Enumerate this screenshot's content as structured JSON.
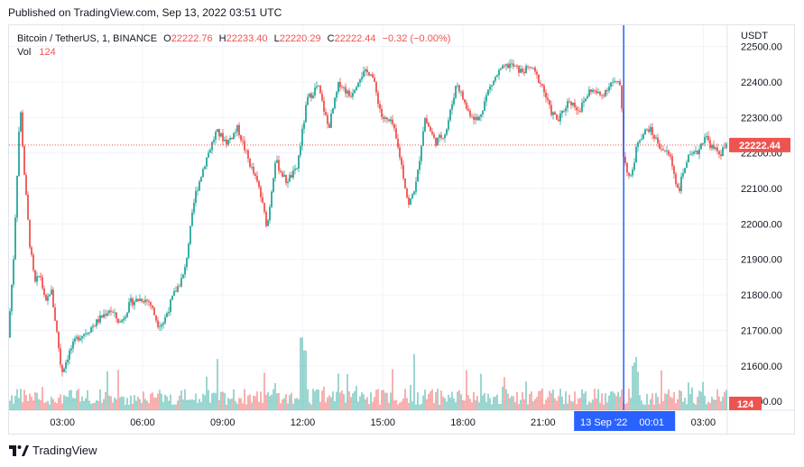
{
  "header": {
    "published": "Published on TradingView.com, Sep 13, 2022 03:51 UTC"
  },
  "legend": {
    "symbol": "Bitcoin / TetherUS, 1, BINANCE",
    "o_label": "O",
    "o_value": "22222.76",
    "h_label": "H",
    "h_value": "22233.40",
    "l_label": "L",
    "l_value": "22220.29",
    "c_label": "C",
    "c_value": "22222.44",
    "change": "−0.32 (−0.00%)",
    "vol_label": "Vol",
    "vol_value": "124"
  },
  "brand": {
    "name": "TradingView"
  },
  "colors": {
    "up": "#26a69a",
    "down": "#ef5350",
    "crosshair": "#2962ff",
    "grid": "#f0f3fa",
    "axis_text": "#131722"
  },
  "chart_data": {
    "type": "candlestick",
    "currency": "USDT",
    "x_ticks": [
      "03:00",
      "06:00",
      "09:00",
      "12:00",
      "15:00",
      "18:00",
      "21:00",
      "00:01",
      "03:00"
    ],
    "x_tick_hours": [
      3,
      6,
      9,
      12,
      15,
      18,
      21,
      24,
      27
    ],
    "x_range_hours": [
      1.0,
      27.9
    ],
    "y_ticks": [
      "22500.00",
      "22400.00",
      "22300.00",
      "22200.00",
      "22100.00",
      "22000.00",
      "21900.00",
      "21800.00",
      "21700.00",
      "21600.00",
      "21500.00"
    ],
    "ylim": [
      21475,
      22560
    ],
    "last_price": 22222.44,
    "last_price_label": "22222.44",
    "last_volume_label": "124",
    "crosshair_hour": 24.02,
    "crosshair_label_date": "13 Sep '22",
    "crosshair_label_time": "00:01",
    "price_path": [
      [
        1.0,
        21680
      ],
      [
        1.2,
        21900
      ],
      [
        1.45,
        22340
      ],
      [
        1.6,
        22150
      ],
      [
        1.8,
        21950
      ],
      [
        2.0,
        21830
      ],
      [
        2.2,
        21860
      ],
      [
        2.4,
        21770
      ],
      [
        2.6,
        21820
      ],
      [
        2.85,
        21680
      ],
      [
        3.0,
        21580
      ],
      [
        3.3,
        21640
      ],
      [
        3.6,
        21680
      ],
      [
        4.0,
        21700
      ],
      [
        4.4,
        21730
      ],
      [
        4.8,
        21760
      ],
      [
        5.2,
        21720
      ],
      [
        5.6,
        21780
      ],
      [
        6.0,
        21790
      ],
      [
        6.3,
        21780
      ],
      [
        6.6,
        21720
      ],
      [
        6.8,
        21720
      ],
      [
        7.2,
        21800
      ],
      [
        7.6,
        21860
      ],
      [
        8.0,
        22080
      ],
      [
        8.4,
        22180
      ],
      [
        8.8,
        22260
      ],
      [
        9.2,
        22230
      ],
      [
        9.6,
        22270
      ],
      [
        10.0,
        22180
      ],
      [
        10.4,
        22100
      ],
      [
        10.7,
        21990
      ],
      [
        11.0,
        22180
      ],
      [
        11.4,
        22120
      ],
      [
        11.8,
        22150
      ],
      [
        12.2,
        22350
      ],
      [
        12.6,
        22390
      ],
      [
        13.0,
        22270
      ],
      [
        13.4,
        22400
      ],
      [
        13.8,
        22360
      ],
      [
        14.2,
        22420
      ],
      [
        14.6,
        22430
      ],
      [
        15.0,
        22300
      ],
      [
        15.4,
        22280
      ],
      [
        15.7,
        22180
      ],
      [
        16.0,
        22050
      ],
      [
        16.3,
        22120
      ],
      [
        16.6,
        22300
      ],
      [
        17.0,
        22230
      ],
      [
        17.4,
        22260
      ],
      [
        17.8,
        22400
      ],
      [
        18.2,
        22320
      ],
      [
        18.6,
        22290
      ],
      [
        19.0,
        22380
      ],
      [
        19.4,
        22430
      ],
      [
        19.8,
        22450
      ],
      [
        20.2,
        22430
      ],
      [
        20.6,
        22440
      ],
      [
        21.0,
        22390
      ],
      [
        21.3,
        22320
      ],
      [
        21.6,
        22290
      ],
      [
        22.0,
        22350
      ],
      [
        22.4,
        22320
      ],
      [
        22.8,
        22380
      ],
      [
        23.2,
        22360
      ],
      [
        23.6,
        22400
      ],
      [
        23.95,
        22390
      ],
      [
        24.05,
        22190
      ],
      [
        24.3,
        22120
      ],
      [
        24.6,
        22240
      ],
      [
        25.0,
        22270
      ],
      [
        25.4,
        22220
      ],
      [
        25.8,
        22190
      ],
      [
        26.1,
        22090
      ],
      [
        26.4,
        22180
      ],
      [
        26.8,
        22200
      ],
      [
        27.1,
        22250
      ],
      [
        27.4,
        22210
      ],
      [
        27.7,
        22200
      ],
      [
        27.9,
        22222
      ]
    ],
    "volume_scale_label": "Vol"
  }
}
